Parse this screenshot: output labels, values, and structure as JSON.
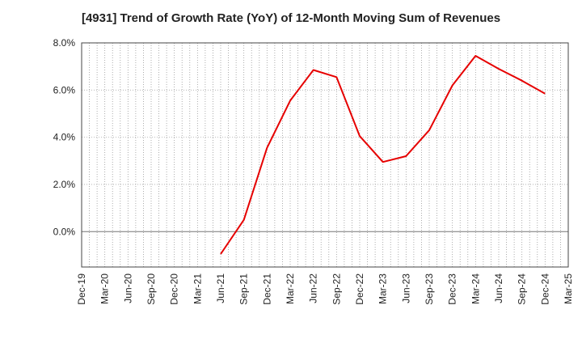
{
  "chart_data": {
    "type": "line",
    "title": "[4931]  Trend of Growth Rate (YoY) of 12-Month Moving Sum of Revenues",
    "xlabel": "",
    "ylabel": "",
    "x_ticks": [
      "Dec-19",
      "Mar-20",
      "Jun-20",
      "Sep-20",
      "Dec-20",
      "Mar-21",
      "Jun-21",
      "Sep-21",
      "Dec-21",
      "Mar-22",
      "Jun-22",
      "Sep-22",
      "Dec-22",
      "Mar-23",
      "Jun-23",
      "Sep-23",
      "Dec-23",
      "Mar-24",
      "Jun-24",
      "Sep-24",
      "Dec-24",
      "Mar-25"
    ],
    "y_ticks": [
      "0.0%",
      "2.0%",
      "4.0%",
      "6.0%",
      "8.0%"
    ],
    "ylim": [
      -1.5,
      8.0
    ],
    "y_unit": "%",
    "grid": true,
    "line_color": "#e60000",
    "series": [
      {
        "x": [
          "Jun-21",
          "Sep-21",
          "Dec-21",
          "Mar-22",
          "Jun-22",
          "Sep-22",
          "Dec-22",
          "Mar-23",
          "Jun-23",
          "Sep-23",
          "Dec-23",
          "Mar-24",
          "Jun-24",
          "Sep-24",
          "Dec-24"
        ],
        "values": [
          -0.95,
          0.5,
          3.55,
          5.55,
          6.85,
          6.55,
          4.05,
          2.95,
          3.2,
          4.3,
          6.2,
          7.45,
          6.9,
          6.4,
          5.85
        ]
      }
    ]
  }
}
